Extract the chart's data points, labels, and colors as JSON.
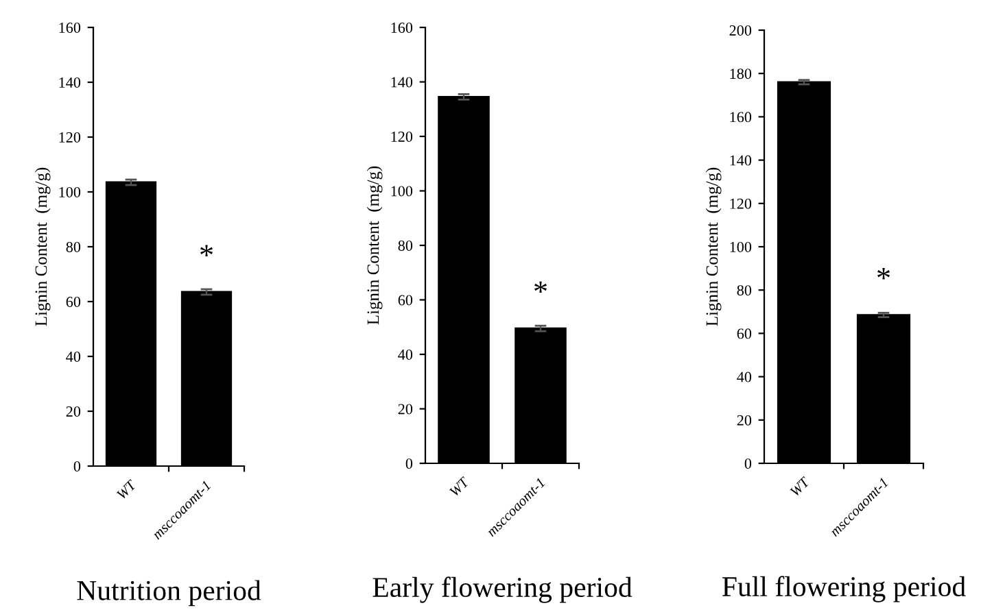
{
  "chart_data": [
    {
      "type": "bar",
      "title": "Nutrition period",
      "ylabel": "Lignin Content  (mg/g)",
      "categories": [
        "WT",
        "msccoaomt-1"
      ],
      "values": [
        103.5,
        63.5
      ],
      "errors": [
        1,
        1
      ],
      "color": "#000000",
      "ylim": [
        0,
        160
      ],
      "yticks": [
        0,
        20,
        40,
        60,
        80,
        100,
        120,
        140,
        160
      ],
      "grid": false,
      "legend": false,
      "annotations": [
        "*"
      ]
    },
    {
      "type": "bar",
      "title": "Early flowering period",
      "ylabel": "Lignin Content  (mg/g)",
      "categories": [
        "WT",
        "msccoaomt-1"
      ],
      "values": [
        134.5,
        49.5
      ],
      "errors": [
        1,
        1
      ],
      "color": "#000000",
      "ylim": [
        0,
        160
      ],
      "yticks": [
        0,
        20,
        40,
        60,
        80,
        100,
        120,
        140,
        160
      ],
      "grid": false,
      "legend": false,
      "annotations": [
        "*"
      ]
    },
    {
      "type": "bar",
      "title": "Full flowering period",
      "ylabel": "Lignin Content  (mg/g)",
      "categories": [
        "WT",
        "msccoaomt-1"
      ],
      "values": [
        176,
        68.5
      ],
      "errors": [
        1,
        1
      ],
      "color": "#000000",
      "ylim": [
        0,
        200
      ],
      "yticks": [
        0,
        20,
        40,
        60,
        80,
        100,
        120,
        140,
        160,
        180,
        200
      ],
      "grid": false,
      "legend": false,
      "annotations": [
        "*"
      ]
    }
  ]
}
